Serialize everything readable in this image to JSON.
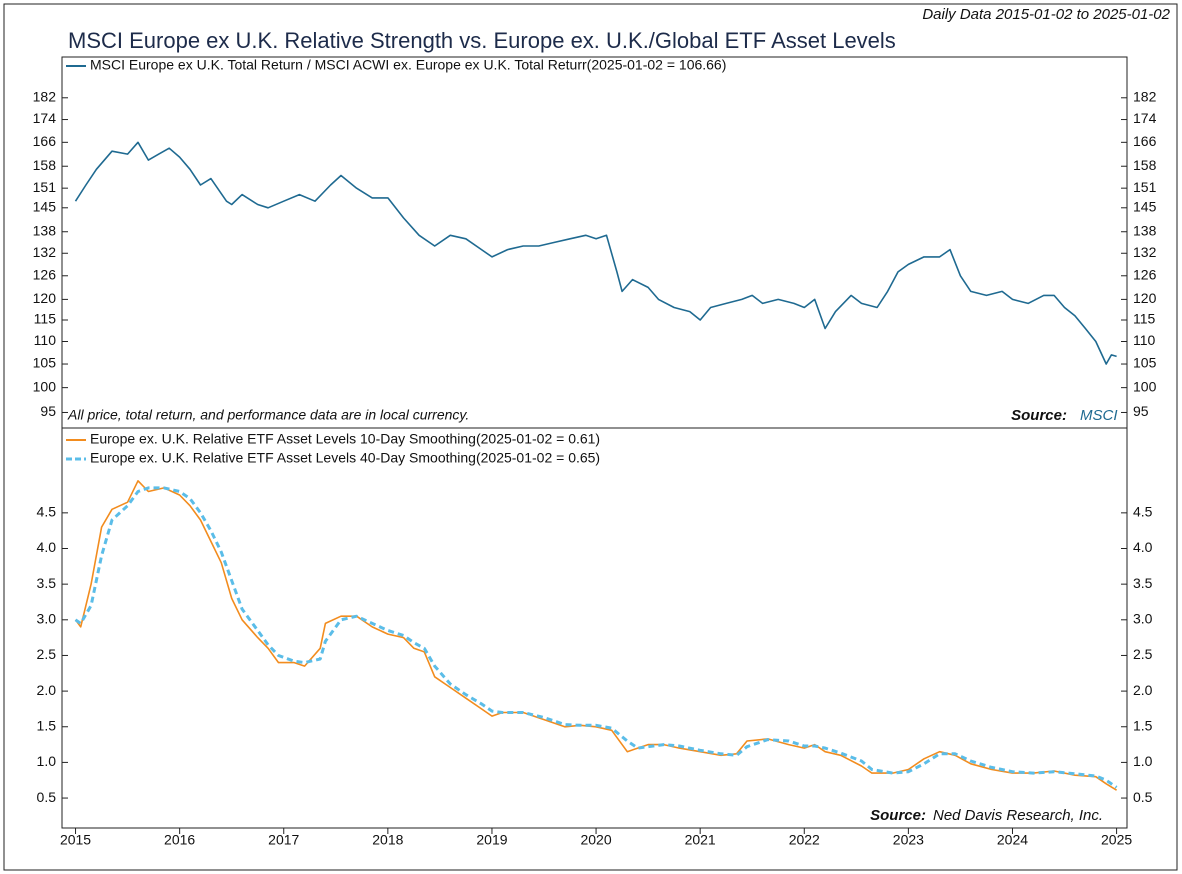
{
  "header": "Daily Data 2015-01-02 to 2025-01-02",
  "title": "MSCI Europe ex U.K. Relative Strength vs. Europe ex. U.K./Global ETF Asset Levels",
  "chart_data": [
    {
      "type": "line",
      "log_y": true,
      "note": "All price, total return, and performance data are in local currency.",
      "source_label": "Source:",
      "source": "MSCI",
      "xlim": [
        2014.87,
        2025.1
      ],
      "ylim": [
        92,
        198
      ],
      "yticks": [
        95,
        100,
        105,
        110,
        115,
        120,
        126,
        132,
        138,
        145,
        151,
        158,
        166,
        174,
        182
      ],
      "x": [
        2015.0,
        2015.1,
        2015.2,
        2015.35,
        2015.5,
        2015.6,
        2015.7,
        2015.8,
        2015.9,
        2016.0,
        2016.1,
        2016.2,
        2016.3,
        2016.45,
        2016.5,
        2016.6,
        2016.75,
        2016.85,
        2017.0,
        2017.15,
        2017.3,
        2017.45,
        2017.55,
        2017.7,
        2017.85,
        2018.0,
        2018.15,
        2018.3,
        2018.45,
        2018.6,
        2018.75,
        2018.9,
        2019.0,
        2019.15,
        2019.3,
        2019.45,
        2019.6,
        2019.75,
        2019.9,
        2020.0,
        2020.1,
        2020.2,
        2020.25,
        2020.35,
        2020.5,
        2020.6,
        2020.75,
        2020.9,
        2021.0,
        2021.1,
        2021.25,
        2021.4,
        2021.5,
        2021.6,
        2021.75,
        2021.9,
        2022.0,
        2022.1,
        2022.2,
        2022.3,
        2022.45,
        2022.55,
        2022.7,
        2022.8,
        2022.9,
        2023.0,
        2023.15,
        2023.3,
        2023.4,
        2023.5,
        2023.6,
        2023.75,
        2023.9,
        2024.0,
        2024.15,
        2024.3,
        2024.4,
        2024.5,
        2024.6,
        2024.7,
        2024.8,
        2024.9,
        2024.95,
        2025.0
      ],
      "series": [
        {
          "name": "MSCI Europe ex U.K. Total Return / MSCI ACWI ex. Europe ex U.K. Total Returr(2025-01-02 = 106.66)",
          "color": "#1f6a91",
          "values": [
            147,
            152,
            157,
            163,
            162,
            166,
            160,
            162,
            164,
            161,
            157,
            152,
            154,
            147,
            146,
            149,
            146,
            145,
            147,
            149,
            147,
            152,
            155,
            151,
            148,
            148,
            142,
            137,
            134,
            137,
            136,
            133,
            131,
            133,
            134,
            134,
            135,
            136,
            137,
            136,
            137,
            127,
            122,
            125,
            123,
            120,
            118,
            117,
            115,
            118,
            119,
            120,
            121,
            119,
            120,
            119,
            118,
            120,
            113,
            117,
            121,
            119,
            118,
            122,
            127,
            129,
            131,
            131,
            133,
            126,
            122,
            121,
            122,
            120,
            119,
            121,
            121,
            118,
            116,
            113,
            110,
            105,
            107,
            106.66
          ]
        }
      ]
    },
    {
      "type": "line",
      "source_label": "Source:",
      "source": "Ned Davis Research, Inc.",
      "xlim": [
        2014.87,
        2025.1
      ],
      "xticks": [
        2015,
        2016,
        2017,
        2018,
        2019,
        2020,
        2021,
        2022,
        2023,
        2024,
        2025
      ],
      "ylim": [
        0.08,
        5.69
      ],
      "yticks": [
        0.5,
        {
          "value": 1,
          "label": "1.0"
        },
        1.5,
        {
          "value": 2,
          "label": "2.0"
        },
        2.5,
        {
          "value": 3,
          "label": "3.0"
        },
        3.5,
        {
          "value": 4,
          "label": "4.0"
        },
        4.5
      ],
      "x": [
        2015.0,
        2015.05,
        2015.15,
        2015.25,
        2015.35,
        2015.5,
        2015.6,
        2015.7,
        2015.85,
        2016.0,
        2016.1,
        2016.2,
        2016.3,
        2016.4,
        2016.5,
        2016.6,
        2016.75,
        2016.85,
        2016.95,
        2017.1,
        2017.2,
        2017.35,
        2017.4,
        2017.55,
        2017.7,
        2017.85,
        2018.0,
        2018.15,
        2018.25,
        2018.35,
        2018.45,
        2018.6,
        2018.75,
        2018.9,
        2019.0,
        2019.1,
        2019.3,
        2019.5,
        2019.7,
        2019.85,
        2020.0,
        2020.15,
        2020.3,
        2020.4,
        2020.5,
        2020.65,
        2020.8,
        2021.0,
        2021.2,
        2021.35,
        2021.45,
        2021.65,
        2021.85,
        2022.0,
        2022.1,
        2022.2,
        2022.35,
        2022.55,
        2022.65,
        2022.85,
        2023.0,
        2023.15,
        2023.3,
        2023.45,
        2023.6,
        2023.8,
        2024.0,
        2024.2,
        2024.4,
        2024.6,
        2024.8,
        2024.9,
        2025.0
      ],
      "series": [
        {
          "name": "Europe ex. U.K. Relative ETF Asset Levels 10-Day Smoothing(2025-01-02 = 0.61)",
          "color": "#f28c1e",
          "dashed": false,
          "values": [
            3.0,
            2.9,
            3.5,
            4.3,
            4.55,
            4.65,
            4.95,
            4.8,
            4.85,
            4.75,
            4.6,
            4.4,
            4.1,
            3.8,
            3.3,
            3.0,
            2.75,
            2.6,
            2.4,
            2.4,
            2.35,
            2.6,
            2.95,
            3.05,
            3.05,
            2.9,
            2.8,
            2.75,
            2.6,
            2.55,
            2.2,
            2.05,
            1.9,
            1.75,
            1.65,
            1.7,
            1.7,
            1.6,
            1.5,
            1.52,
            1.5,
            1.45,
            1.15,
            1.2,
            1.25,
            1.25,
            1.2,
            1.15,
            1.1,
            1.12,
            1.3,
            1.33,
            1.25,
            1.2,
            1.25,
            1.15,
            1.1,
            0.95,
            0.85,
            0.85,
            0.9,
            1.05,
            1.15,
            1.1,
            0.98,
            0.9,
            0.85,
            0.85,
            0.88,
            0.82,
            0.8,
            0.7,
            0.61
          ]
        },
        {
          "name": "Europe ex. U.K. Relative ETF Asset Levels 40-Day Smoothing(2025-01-02 = 0.65)",
          "color": "#5bbde8",
          "dashed": true,
          "values": [
            3.0,
            2.95,
            3.2,
            3.9,
            4.4,
            4.6,
            4.8,
            4.85,
            4.85,
            4.8,
            4.7,
            4.5,
            4.25,
            3.95,
            3.55,
            3.15,
            2.85,
            2.65,
            2.5,
            2.42,
            2.4,
            2.45,
            2.7,
            3.0,
            3.05,
            2.95,
            2.85,
            2.78,
            2.68,
            2.6,
            2.35,
            2.1,
            1.95,
            1.82,
            1.72,
            1.7,
            1.7,
            1.63,
            1.53,
            1.52,
            1.52,
            1.48,
            1.3,
            1.2,
            1.22,
            1.25,
            1.23,
            1.17,
            1.12,
            1.1,
            1.22,
            1.32,
            1.3,
            1.23,
            1.23,
            1.2,
            1.13,
            1.02,
            0.9,
            0.85,
            0.87,
            0.98,
            1.12,
            1.12,
            1.02,
            0.93,
            0.87,
            0.85,
            0.87,
            0.84,
            0.81,
            0.75,
            0.65
          ]
        }
      ]
    }
  ]
}
